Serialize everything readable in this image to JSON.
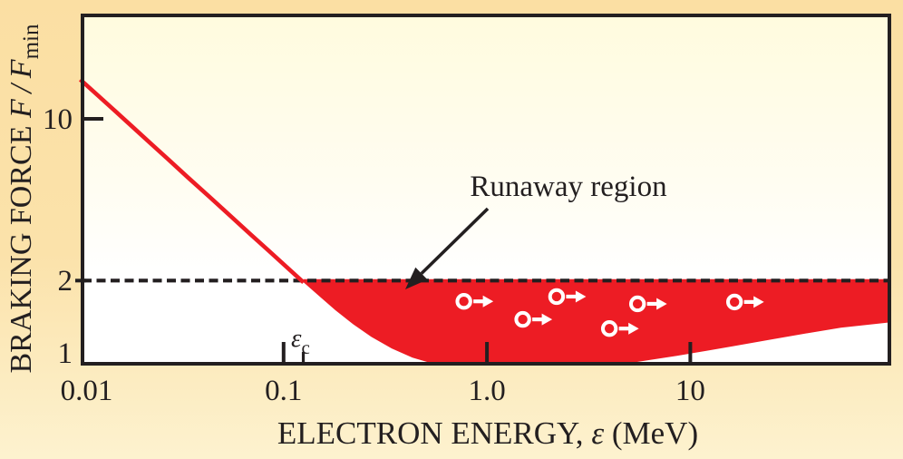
{
  "figure": {
    "ink": "#231f20",
    "accent_red": "#ed1c24",
    "electron_color": "#ffffff",
    "background_top": "#fbdfa3",
    "background_bottom": "#fdf2cf",
    "plot_bg_top": "#fffbde",
    "plot_bg_bottom": "#ffffff"
  },
  "chart_data": {
    "type": "area",
    "title": "",
    "xlabel": "ELECTRON ENERGY, ε (MeV)",
    "ylabel": "BRAKING FORCE F/F_min",
    "xlabel_parts": {
      "prefix": "ELECTRON ENERGY, ",
      "symbol": "ε",
      "suffix": " (MeV)"
    },
    "ylabel_parts": {
      "prefix": "BRAKING FORCE ",
      "math": "F / F",
      "sub": "min"
    },
    "x_scale": "log",
    "y_scale": "log",
    "xlim": [
      0.01,
      97
    ],
    "ylim": [
      0.88,
      28
    ],
    "grid": false,
    "x_ticks": [
      {
        "value": 0.01,
        "label": "0.01",
        "tick": false,
        "label_dx": 7
      },
      {
        "value": 0.1,
        "label": "0.1",
        "tick": true,
        "label_dx": 0
      },
      {
        "value": 1.0,
        "label": "1.0",
        "tick": true,
        "label_dx": 0
      },
      {
        "value": 10,
        "label": "10",
        "tick": true,
        "label_dx": 0
      }
    ],
    "y_ticks": [
      {
        "value": 1,
        "label": "1",
        "tick": false
      },
      {
        "value": 2,
        "label": "2",
        "tick": true
      },
      {
        "value": 10,
        "label": "10",
        "tick": true
      }
    ],
    "threshold": {
      "value": 2,
      "style": "dashed",
      "meaning": "runaway threshold F/F_min = 2"
    },
    "critical_energy": {
      "symbol": "ε",
      "sub": "c",
      "value_mev": 0.125
    },
    "annotations": {
      "runaway_label": "Runaway region"
    },
    "series": [
      {
        "name": "braking-force-curve",
        "points_above_threshold": [
          [
            0.01,
            14.72
          ],
          [
            0.012,
            12.76
          ],
          [
            0.0145,
            11.0
          ],
          [
            0.018,
            9.27
          ],
          [
            0.022,
            7.91
          ],
          [
            0.027,
            6.73
          ],
          [
            0.034,
            5.6
          ],
          [
            0.043,
            4.66
          ],
          [
            0.054,
            3.89
          ],
          [
            0.068,
            3.24
          ],
          [
            0.085,
            2.72
          ],
          [
            0.105,
            2.3
          ],
          [
            0.1253,
            2.0
          ]
        ],
        "points_below_threshold": [
          [
            0.1253,
            2.0
          ],
          [
            0.15,
            1.745
          ],
          [
            0.18,
            1.52
          ],
          [
            0.22,
            1.325
          ],
          [
            0.27,
            1.17
          ],
          [
            0.34,
            1.045
          ],
          [
            0.43,
            0.955
          ],
          [
            0.54,
            0.9
          ],
          [
            0.68,
            0.868
          ],
          [
            0.88,
            0.848
          ],
          [
            1.15,
            0.836
          ],
          [
            1.55,
            0.833
          ],
          [
            2.1,
            0.84
          ],
          [
            2.8,
            0.852
          ],
          [
            3.7,
            0.872
          ],
          [
            4.8,
            0.898
          ],
          [
            6.3,
            0.932
          ],
          [
            8.6,
            0.972
          ],
          [
            12,
            1.02
          ],
          [
            17,
            1.075
          ],
          [
            25,
            1.14
          ],
          [
            37,
            1.21
          ],
          [
            55,
            1.28
          ],
          [
            96,
            1.35
          ]
        ]
      }
    ],
    "electrons": [
      {
        "x_mev": 0.77,
        "f": 1.66
      },
      {
        "x_mev": 1.5,
        "f": 1.39
      },
      {
        "x_mev": 2.2,
        "f": 1.74
      },
      {
        "x_mev": 4.0,
        "f": 1.27
      },
      {
        "x_mev": 5.5,
        "f": 1.62
      },
      {
        "x_mev": 16.5,
        "f": 1.65
      }
    ]
  }
}
